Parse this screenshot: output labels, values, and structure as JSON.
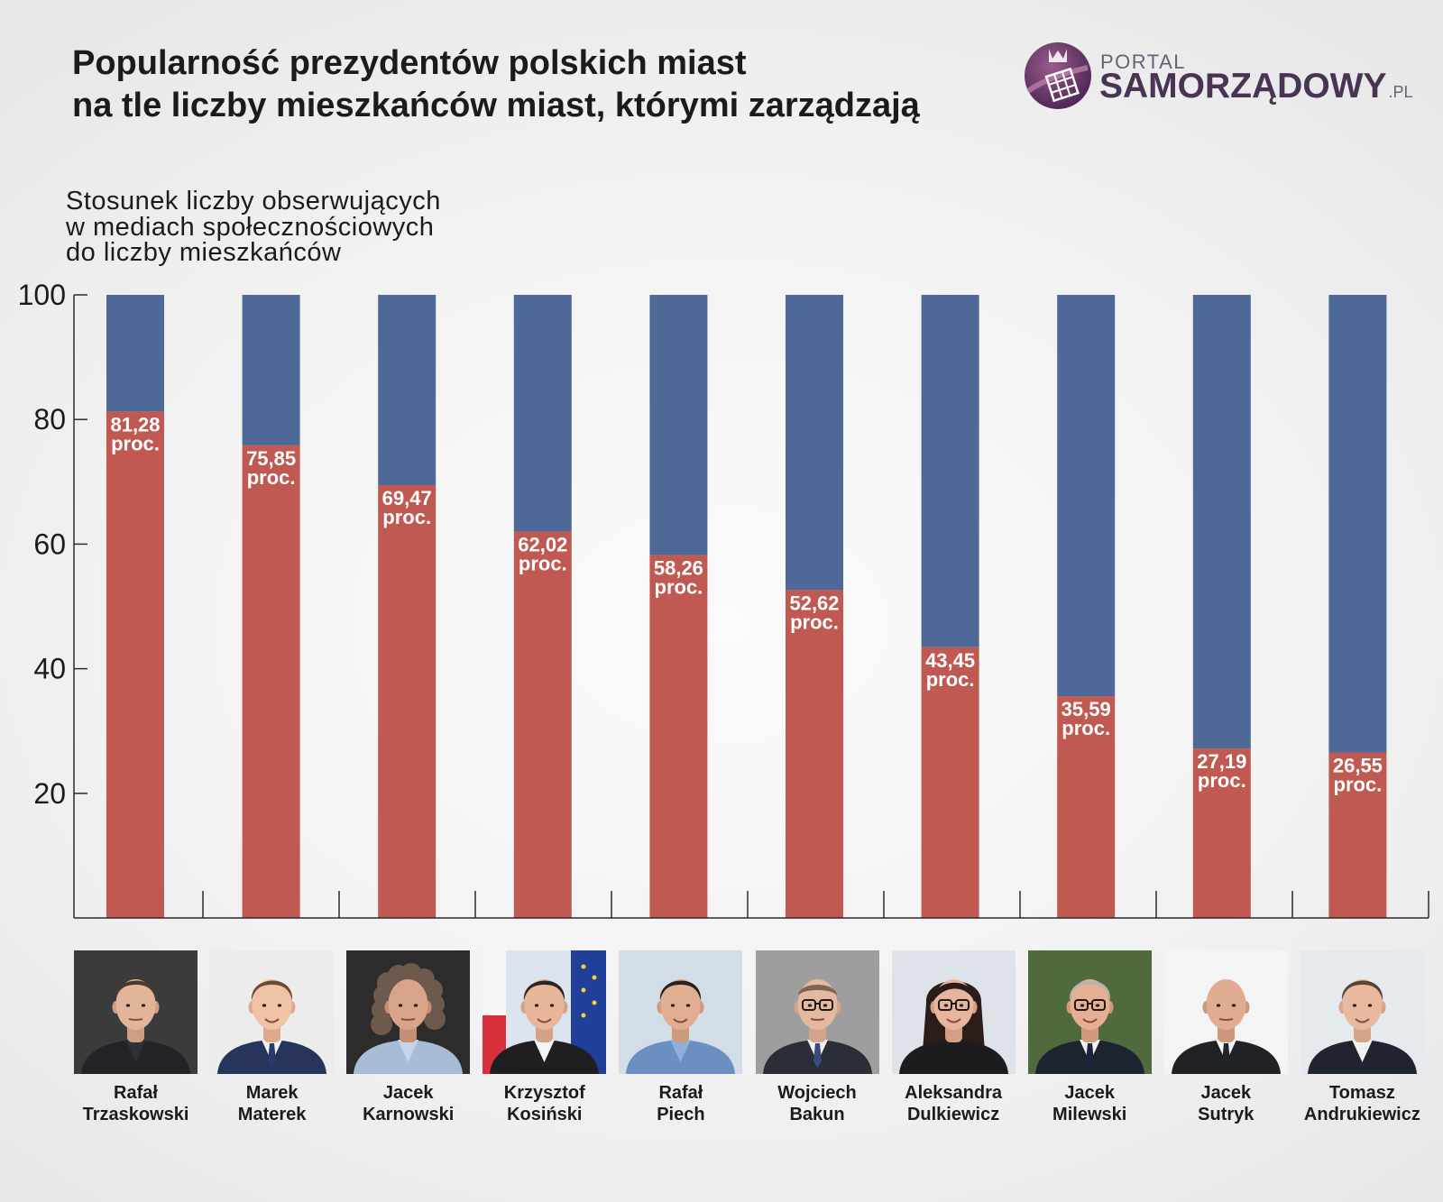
{
  "logo": {
    "top": "PORTAL",
    "name": "SAMORZĄDOWY",
    "suffix": ".PL"
  },
  "chart_data": {
    "type": "bar",
    "stacked": true,
    "title_lines": [
      "Popularność prezydentów polskich miast",
      "na tle liczby mieszkańców miast, którymi zarządzają"
    ],
    "ylabel_lines": [
      "Stosunek liczby obserwujących",
      "w mediach społecznościowych",
      "do liczby mieszkańców"
    ],
    "categories": [
      [
        "Rafał",
        "Trzaskowski"
      ],
      [
        "Marek",
        "Materek"
      ],
      [
        "Jacek",
        "Karnowski"
      ],
      [
        "Krzysztof",
        "Kosiński"
      ],
      [
        "Rafał",
        "Piech"
      ],
      [
        "Wojciech",
        "Bakun"
      ],
      [
        "Aleksandra",
        "Dulkiewicz"
      ],
      [
        "Jacek",
        "Milewski"
      ],
      [
        "Jacek",
        "Sutryk"
      ],
      [
        "Tomasz",
        "Andrukiewicz"
      ]
    ],
    "series": [
      {
        "values": [
          81.28,
          75.85,
          69.47,
          62.02,
          58.26,
          52.62,
          43.45,
          35.59,
          27.19,
          26.55
        ],
        "color": "#c05952"
      },
      {
        "values": [
          18.72,
          24.15,
          30.53,
          37.98,
          41.74,
          47.38,
          56.55,
          64.41,
          72.81,
          73.45
        ],
        "color": "#4e6897"
      }
    ],
    "data_labels": [
      "81,28",
      "75,85",
      "69,47",
      "62,02",
      "58,26",
      "52,62",
      "43,45",
      "35,59",
      "27,19",
      "26,55"
    ],
    "data_label_unit": "proc.",
    "ylim": [
      0,
      100
    ],
    "yticks": [
      20,
      40,
      60,
      80,
      100
    ],
    "grid": false
  }
}
